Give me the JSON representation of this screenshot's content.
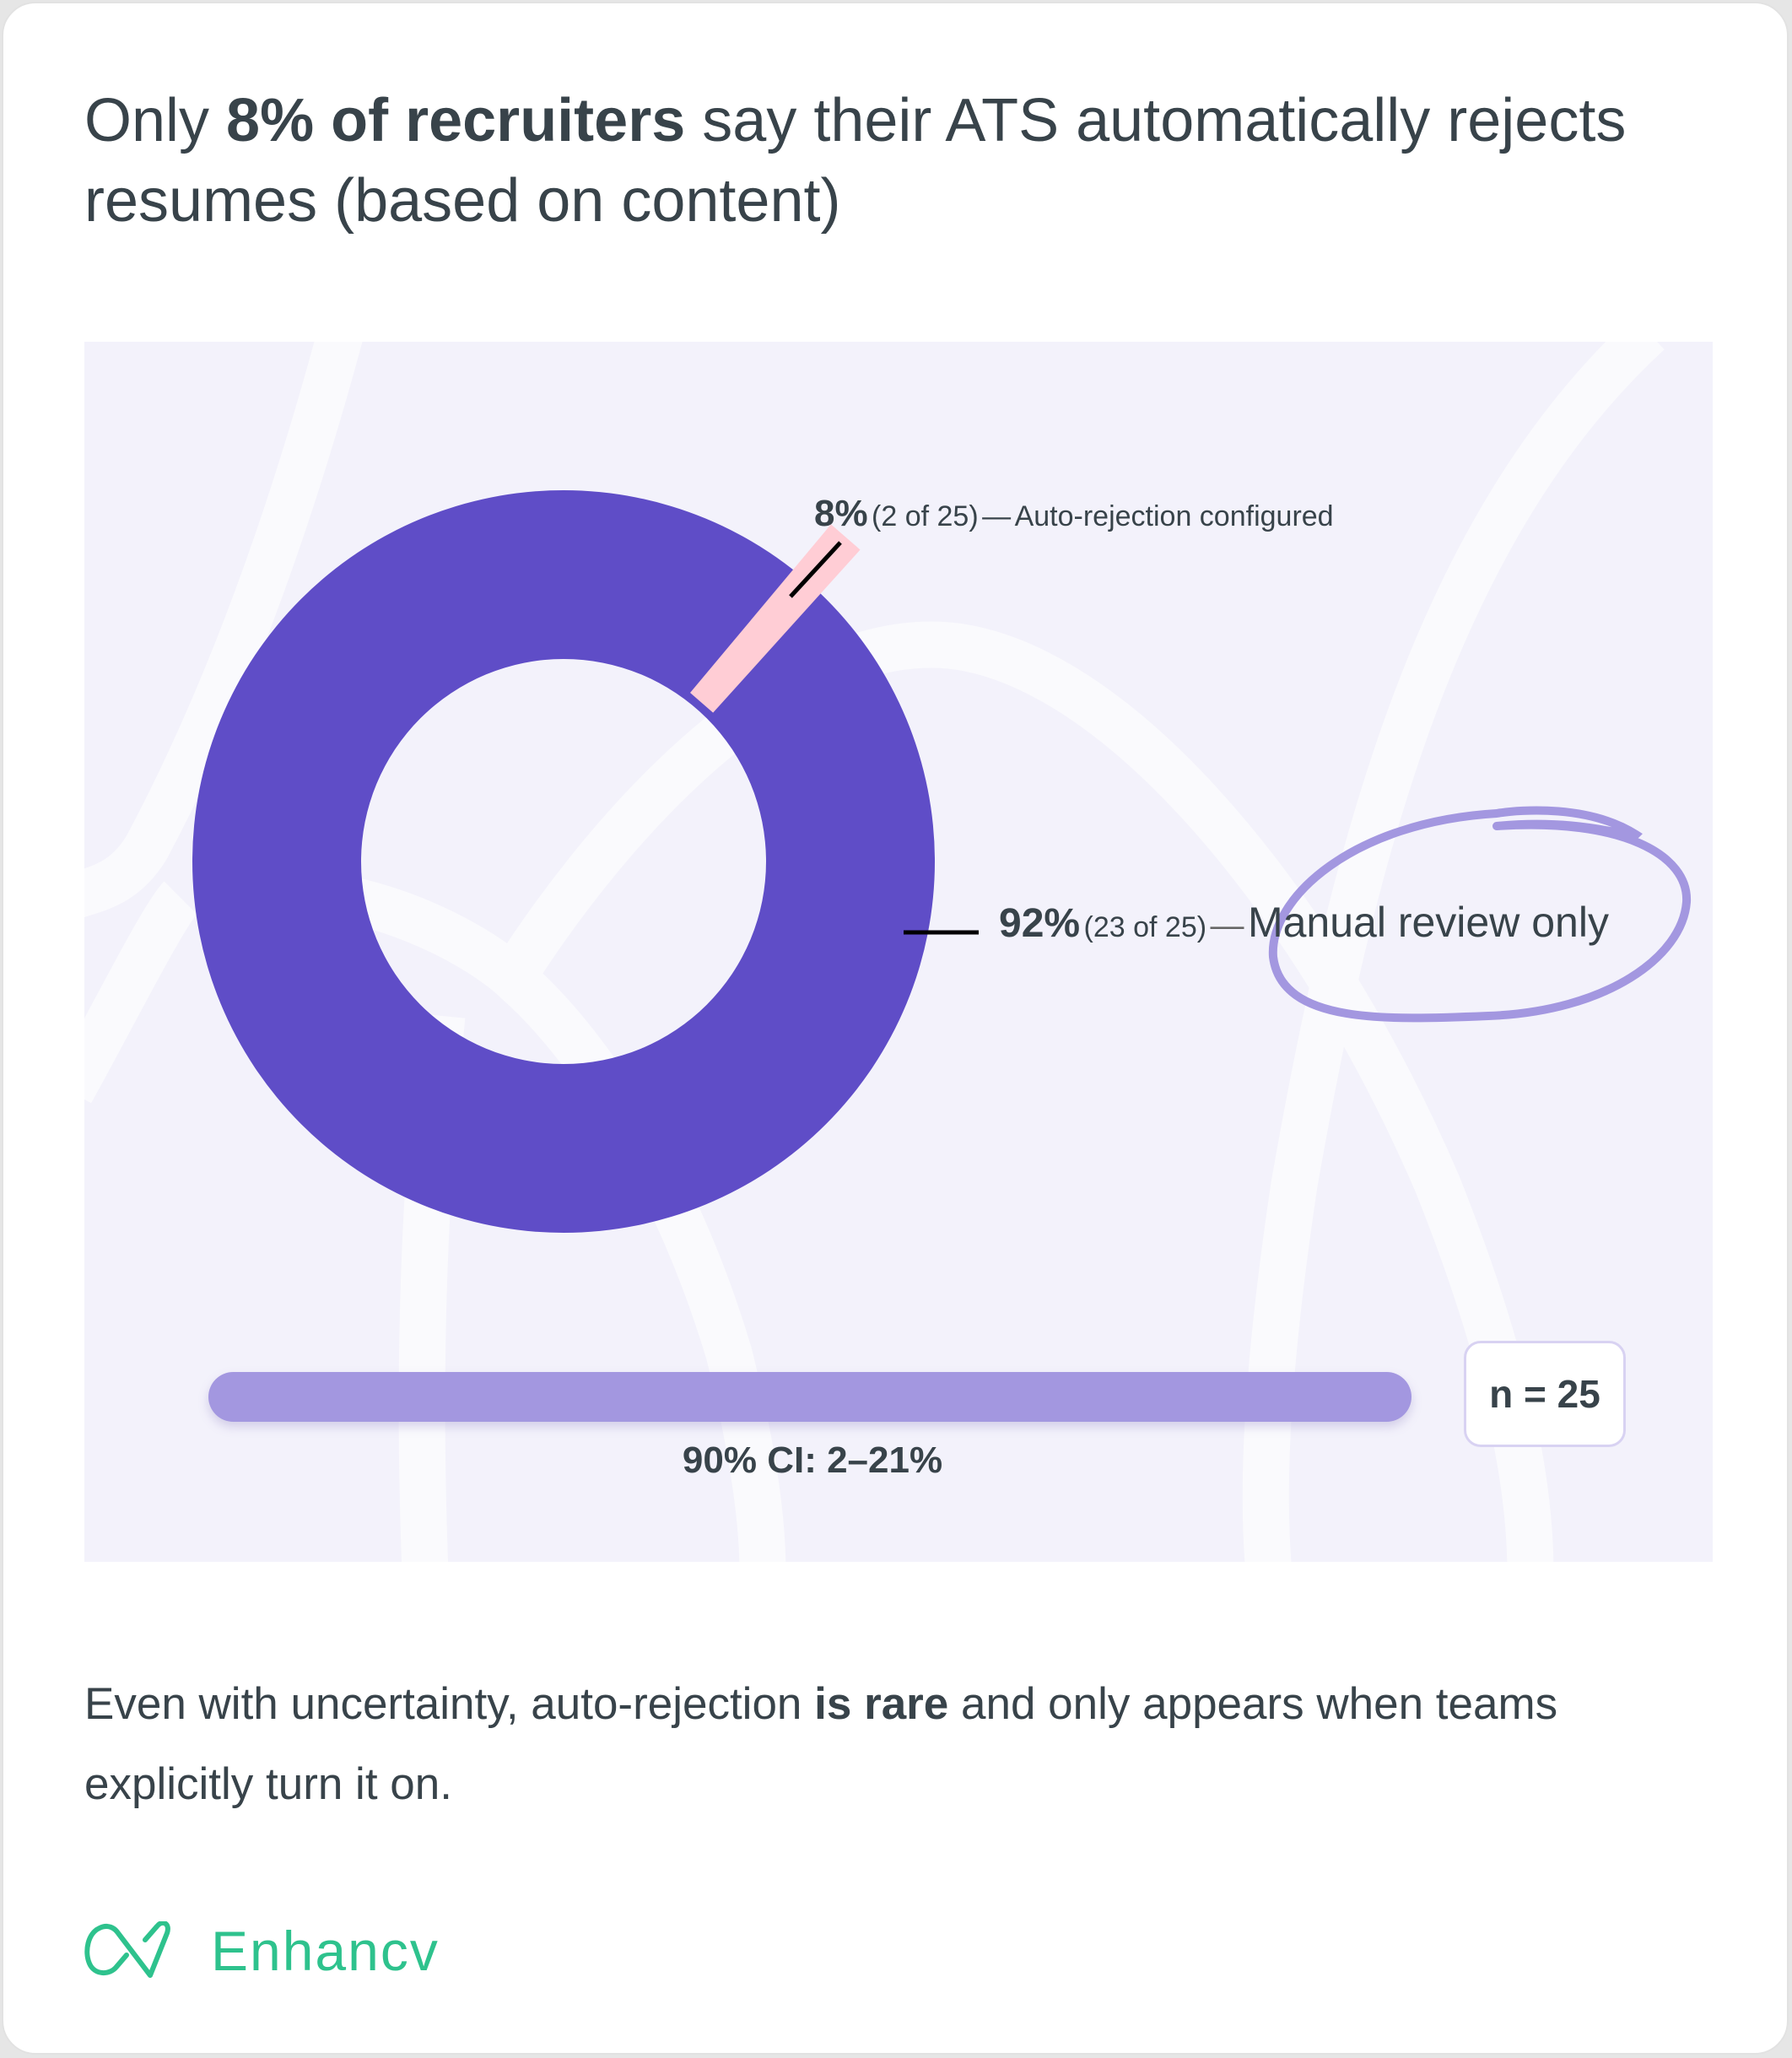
{
  "title": {
    "pre": "Only ",
    "bold": "8% of recruiters",
    "post": " say their ATS automatically rejects resumes (based on content)"
  },
  "chart_data": {
    "type": "pie",
    "variant": "donut",
    "categories": [
      "Manual review only",
      "Auto-rejection configured"
    ],
    "values": [
      92,
      8
    ],
    "counts": [
      23,
      2
    ],
    "total": 25,
    "labels": [
      {
        "pct": "92%",
        "count": "(23 of 25)",
        "sep": "—",
        "text": "Manual review only"
      },
      {
        "pct": "8%",
        "count": "(2 of 25)",
        "sep": "—",
        "text": "Auto-rejection configured"
      }
    ],
    "colors": [
      "#5f4dc7",
      "#ffcdd5"
    ],
    "highlight_color": "#a397e0",
    "confidence_interval": {
      "label": "90% CI: 2–21%",
      "low": 2,
      "high": 21
    },
    "sample_size": "n = 25"
  },
  "body": {
    "pre": "Even with uncertainty, auto-rejection ",
    "bold": "is rare",
    "post": " and only appears when teams explicitly turn it on."
  },
  "logo": {
    "text": "Enhancv",
    "color": "#2ec28d"
  }
}
